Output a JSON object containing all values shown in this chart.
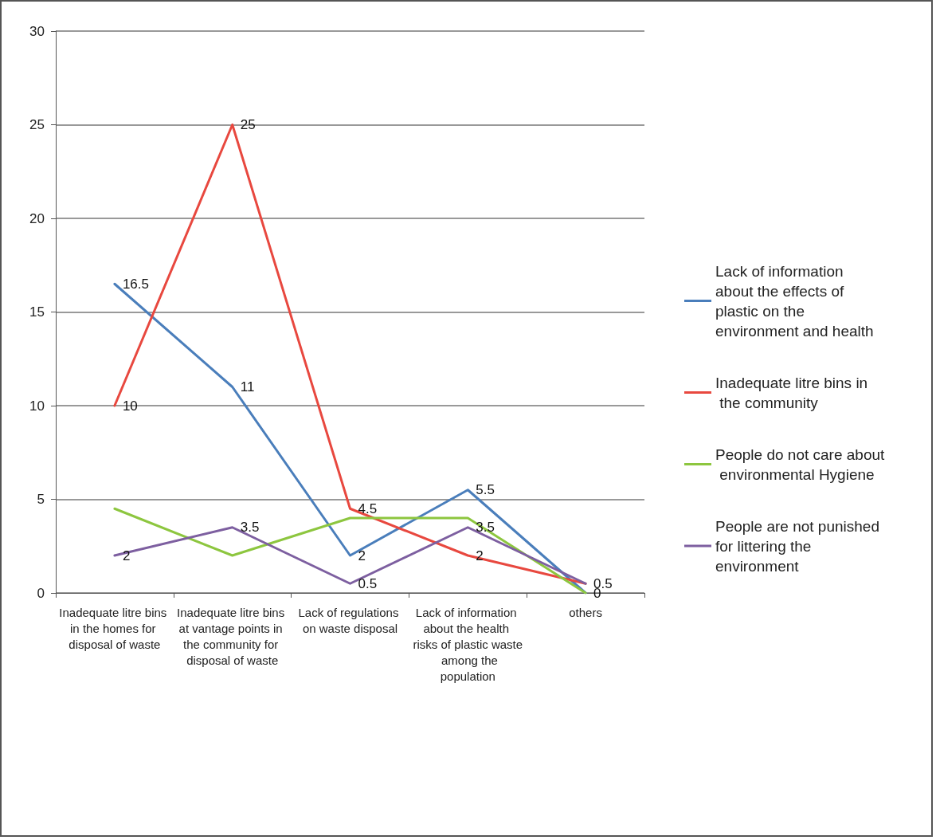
{
  "chart_data": {
    "type": "line",
    "categories": [
      "Inadequate litre bins in the homes for disposal of waste",
      "Inadequate litre bins at vantage points in the community for disposal of waste",
      "Lack of regulations on waste disposal",
      "Lack of information about the health risks of plastic waste  among the population",
      "others"
    ],
    "series": [
      {
        "name": "Lack of information about the effects of plastic on the environment and health",
        "color": "#4a7ebb",
        "values": [
          16.5,
          11,
          2,
          5.5,
          0
        ],
        "value_labels": [
          "16.5",
          "11",
          "2",
          "5.5",
          "0"
        ]
      },
      {
        "name": "Inadequate litre bins in the community",
        "color": "#e8483f",
        "values": [
          10,
          25,
          4.5,
          2,
          0.5
        ],
        "value_labels": [
          "10",
          "25",
          "4.5",
          "2",
          null
        ]
      },
      {
        "name": "People do not care about environmental Hygiene",
        "color": "#8dc63f",
        "values": [
          4.5,
          2,
          4,
          4,
          0
        ]
      },
      {
        "name": "People are not punished for littering the environment",
        "color": "#7d5fa0",
        "values": [
          2,
          3.5,
          0.5,
          3.5,
          0.5
        ],
        "value_labels": [
          "2",
          "3.5",
          "0.5",
          "3.5",
          "0.5"
        ]
      }
    ],
    "ylim": [
      0,
      30
    ],
    "yticks": [
      0,
      5,
      10,
      15,
      20,
      25,
      30
    ],
    "grid": "y",
    "legend": "right",
    "marker": "none",
    "line_style": "solid"
  }
}
